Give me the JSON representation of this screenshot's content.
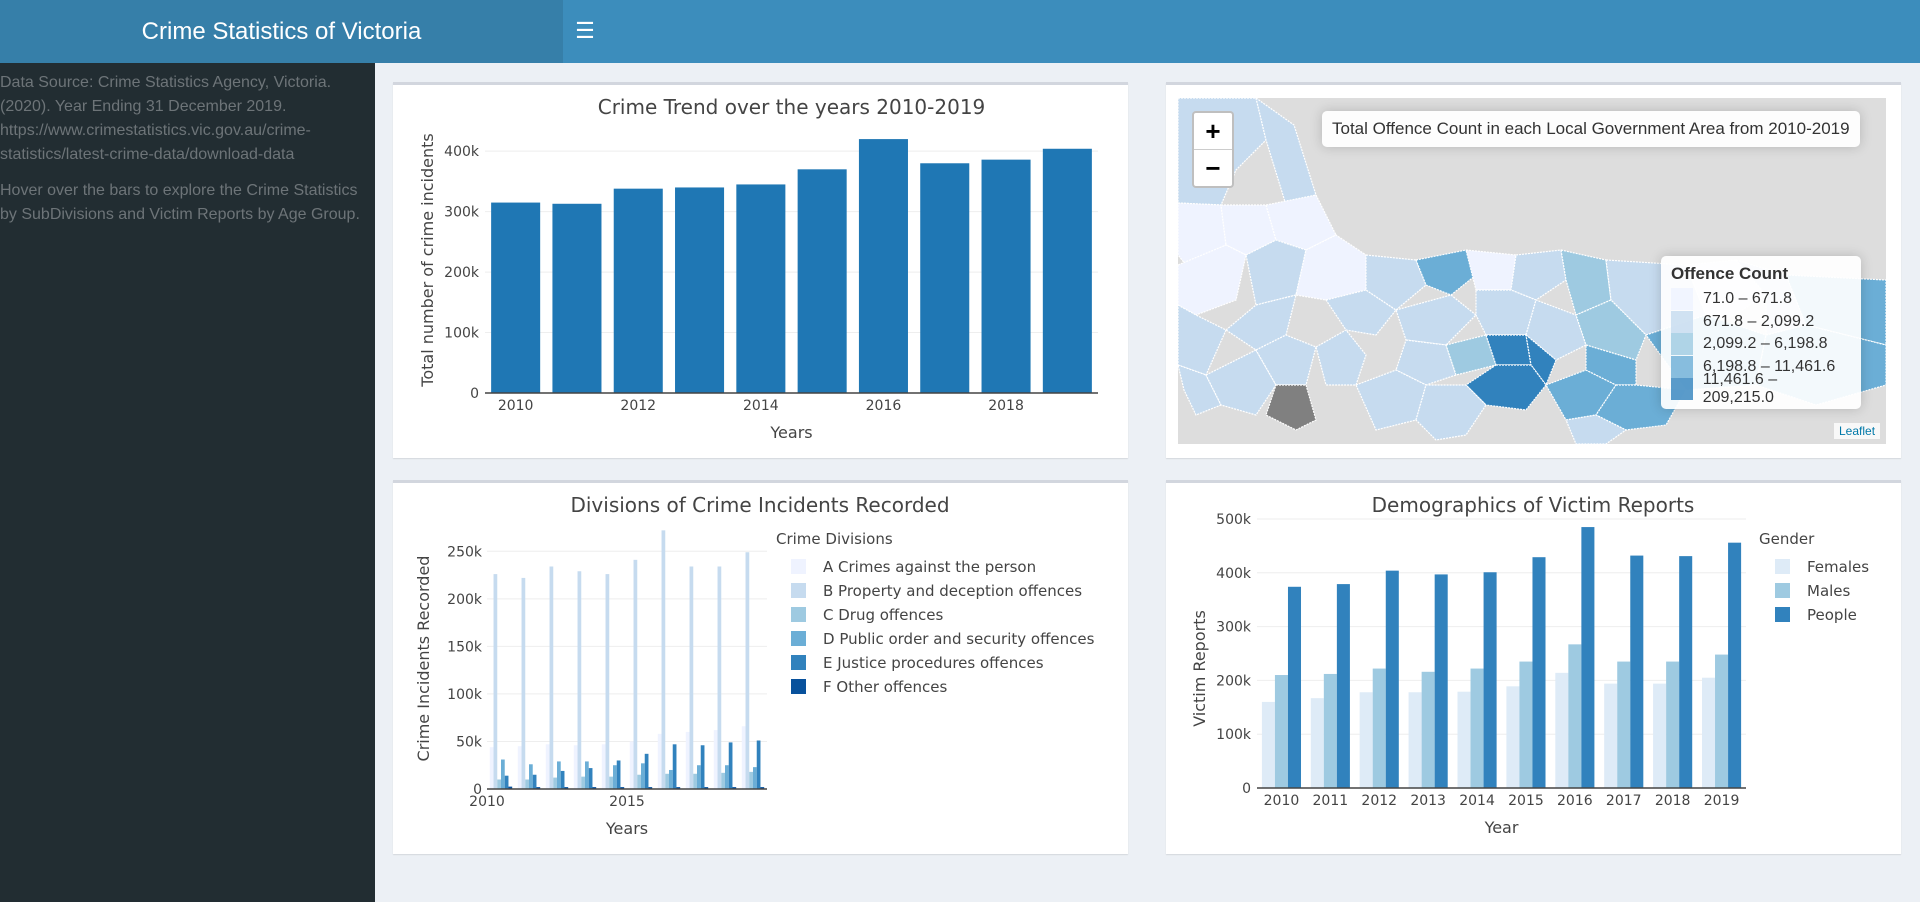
{
  "header": {
    "title": "Crime Statistics of Victoria",
    "toggle_icon": "☰"
  },
  "sidebar": {
    "source_text": "Data Source: Crime Statistics Agency, Victoria. (2020). Year Ending 31 December 2019. https://www.crimestatistics.vic.gov.au/crime-statistics/latest-crime-data/download-data",
    "hint_text": "Hover over the bars to explore the Crime Statistics by SubDivisions and Victim Reports by Age Group."
  },
  "map": {
    "title": "Total Offence Count in each Local Government Area from 2010-2019",
    "zoom_in": "+",
    "zoom_out": "−",
    "attribution": "Leaflet",
    "legend_title": "Offence Count",
    "legend": [
      {
        "label": "71.0 – 671.8",
        "color": "#eff3ff"
      },
      {
        "label": "671.8 – 2,099.2",
        "color": "#c6dbef"
      },
      {
        "label": "2,099.2 – 6,198.8",
        "color": "#9ecae1"
      },
      {
        "label": "6,198.8 – 11,461.6",
        "color": "#6baed6"
      },
      {
        "label": "11,461.6 – 209,215.0",
        "color": "#3182bd"
      }
    ],
    "colors": {
      "ocean": "#dddddd",
      "na": "#808080",
      "border": "#ffffff"
    }
  },
  "chart_data": [
    {
      "type": "bar",
      "title": "Crime Trend over the years 2010-2019",
      "xlabel": "Years",
      "ylabel": "Total number of crime incidents",
      "x": [
        2010,
        2011,
        2012,
        2013,
        2014,
        2015,
        2016,
        2017,
        2018,
        2019
      ],
      "values": [
        315000,
        313000,
        338000,
        340000,
        345000,
        370000,
        420000,
        380000,
        386000,
        404000
      ],
      "ylim": [
        0,
        440000
      ],
      "yticks": [
        0,
        100000,
        200000,
        300000,
        400000
      ],
      "ytick_labels": [
        "0",
        "100k",
        "200k",
        "300k",
        "400k"
      ],
      "xticks": [
        2010,
        2012,
        2014,
        2016,
        2018
      ],
      "color": "#1f77b4"
    },
    {
      "type": "bar",
      "title": "Divisions of Crime Incidents Recorded",
      "xlabel": "Years",
      "ylabel": "Crime Incidents Recorded",
      "legend_title": "Crime Divisions",
      "x": [
        2010,
        2011,
        2012,
        2013,
        2014,
        2015,
        2016,
        2017,
        2018,
        2019
      ],
      "xticks": [
        2010,
        2015
      ],
      "ylim": [
        0,
        285000
      ],
      "yticks": [
        0,
        50000,
        100000,
        150000,
        200000,
        250000
      ],
      "ytick_labels": [
        "0",
        "50k",
        "100k",
        "150k",
        "200k",
        "250k"
      ],
      "series": [
        {
          "name": "A Crimes against the person",
          "color": "#eff3ff",
          "values": [
            44000,
            45000,
            47000,
            46000,
            47000,
            50000,
            58000,
            60000,
            62000,
            66000
          ]
        },
        {
          "name": "B Property and deception offences",
          "color": "#c6dbef",
          "values": [
            226000,
            222000,
            234000,
            229000,
            226000,
            241000,
            272000,
            234000,
            234000,
            249000
          ]
        },
        {
          "name": "C Drug offences",
          "color": "#9ecae1",
          "values": [
            10000,
            10000,
            12000,
            13000,
            13000,
            15000,
            16000,
            16000,
            17000,
            18000
          ]
        },
        {
          "name": "D Public order and security offences",
          "color": "#6baed6",
          "values": [
            31000,
            26000,
            29000,
            29000,
            25000,
            27000,
            20000,
            25000,
            25000,
            23000
          ]
        },
        {
          "name": "E Justice procedures offences",
          "color": "#3182bd",
          "values": [
            14000,
            15000,
            19000,
            22000,
            30000,
            37000,
            47000,
            46000,
            49000,
            51000
          ]
        },
        {
          "name": "F Other offences",
          "color": "#08519c",
          "values": [
            2500,
            2000,
            2000,
            2000,
            2000,
            2000,
            2000,
            2000,
            2000,
            2000
          ]
        }
      ]
    },
    {
      "type": "bar",
      "title": "Demographics of Victim Reports",
      "xlabel": "Year",
      "ylabel": "Victim Reports",
      "legend_title": "Gender",
      "categories": [
        "2010",
        "2011",
        "2012",
        "2013",
        "2014",
        "2015",
        "2016",
        "2017",
        "2018",
        "2019"
      ],
      "ylim": [
        0,
        500000
      ],
      "yticks": [
        0,
        100000,
        200000,
        300000,
        400000,
        500000
      ],
      "ytick_labels": [
        "0",
        "100k",
        "200k",
        "300k",
        "400k",
        "500k"
      ],
      "series": [
        {
          "name": "Females",
          "color": "#deebf7",
          "values": [
            160000,
            167000,
            178000,
            178000,
            179000,
            189000,
            214000,
            194000,
            194000,
            205000
          ]
        },
        {
          "name": "Males",
          "color": "#9ecae1",
          "values": [
            210000,
            212000,
            222000,
            216000,
            222000,
            235000,
            267000,
            235000,
            235000,
            248000
          ]
        },
        {
          "name": "People",
          "color": "#3182bd",
          "values": [
            374000,
            379000,
            404000,
            397000,
            401000,
            429000,
            485000,
            432000,
            431000,
            456000
          ]
        }
      ]
    }
  ]
}
